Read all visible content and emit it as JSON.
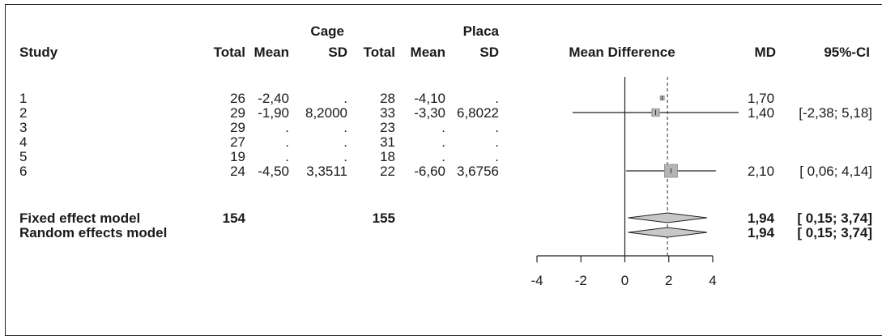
{
  "header": {
    "group1": "Cage",
    "group2": "Placa",
    "study": "Study",
    "total": "Total",
    "mean": "Mean",
    "sd": "SD",
    "mean_difference": "Mean Difference",
    "md": "MD",
    "ci": "95%-CI"
  },
  "rows": [
    {
      "study": "1",
      "total1": "26",
      "mean1": "-2,40",
      "sd1": ".",
      "total2": "28",
      "mean2": "-4,10",
      "sd2": ".",
      "md": "1,70",
      "ci": ""
    },
    {
      "study": "2",
      "total1": "29",
      "mean1": "-1,90",
      "sd1": "8,2000",
      "total2": "33",
      "mean2": "-3,30",
      "sd2": "6,8022",
      "md": "1,40",
      "ci": "[-2,38; 5,18]"
    },
    {
      "study": "3",
      "total1": "29",
      "mean1": ".",
      "sd1": ".",
      "total2": "23",
      "mean2": ".",
      "sd2": ".",
      "md": "",
      "ci": ""
    },
    {
      "study": "4",
      "total1": "27",
      "mean1": ".",
      "sd1": ".",
      "total2": "31",
      "mean2": ".",
      "sd2": ".",
      "md": "",
      "ci": ""
    },
    {
      "study": "5",
      "total1": "19",
      "mean1": ".",
      "sd1": ".",
      "total2": "18",
      "mean2": ".",
      "sd2": ".",
      "md": "",
      "ci": ""
    },
    {
      "study": "6",
      "total1": "24",
      "mean1": "-4,50",
      "sd1": "3,3511",
      "total2": "22",
      "mean2": "-6,60",
      "sd2": "3,6756",
      "md": "2,10",
      "ci": "[ 0,06; 4,14]"
    }
  ],
  "summary": [
    {
      "label": "Fixed effect model",
      "total1": "154",
      "total2": "155",
      "md": "1,94",
      "ci": "[ 0,15; 3,74]"
    },
    {
      "label": "Random effects model",
      "total1": "",
      "total2": "",
      "md": "1,94",
      "ci": "[ 0,15; 3,74]"
    }
  ],
  "chart_data": {
    "type": "forest",
    "xlabel": "Mean Difference",
    "xlim": [
      -4,
      4
    ],
    "ticks": [
      -4,
      -2,
      0,
      2,
      4
    ],
    "tick_labels": [
      "-4",
      "-2",
      "0",
      "2",
      "4"
    ],
    "null_line": 0,
    "pooled_line": 1.94,
    "studies": [
      {
        "study": "1",
        "md": 1.7,
        "lower": null,
        "upper": null,
        "weight": 0.1
      },
      {
        "study": "2",
        "md": 1.4,
        "lower": -2.38,
        "upper": 5.18,
        "weight": 0.45
      },
      {
        "study": "6",
        "md": 2.1,
        "lower": 0.06,
        "upper": 4.14,
        "weight": 1.0
      }
    ],
    "pooled": [
      {
        "model": "Fixed effect model",
        "md": 1.94,
        "lower": 0.15,
        "upper": 3.74
      },
      {
        "model": "Random effects model",
        "md": 1.94,
        "lower": 0.15,
        "upper": 3.74
      }
    ],
    "colors": {
      "square": "#b4b4b4",
      "square_border": "#8c8c8c",
      "diamond": "#c8c8c8",
      "line": "#222222"
    }
  }
}
